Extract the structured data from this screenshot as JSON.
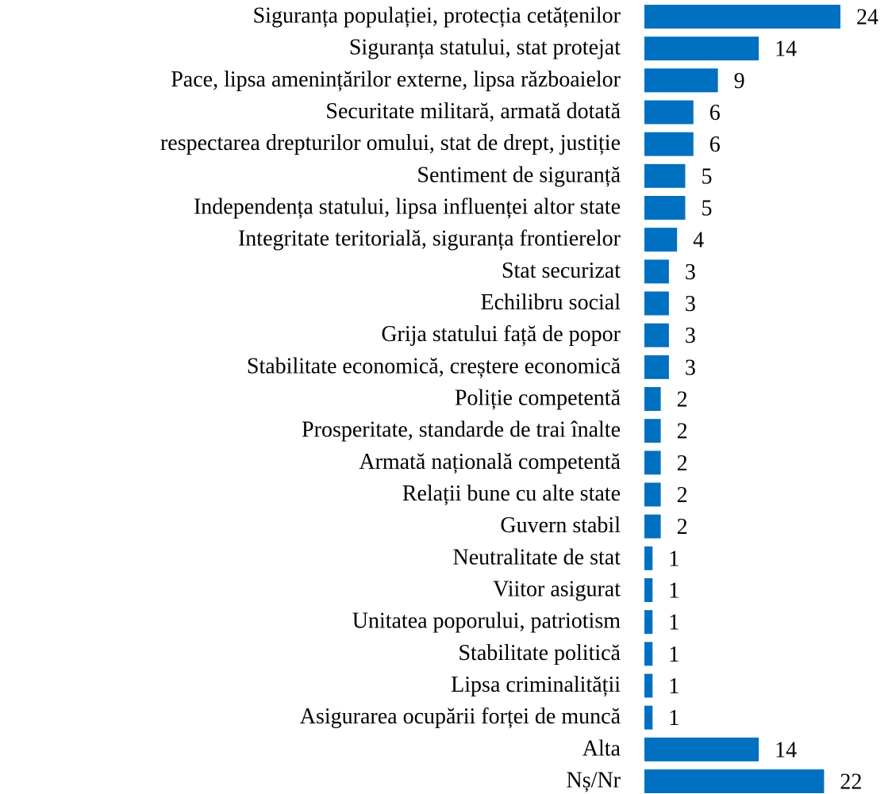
{
  "chart_data": {
    "type": "bar",
    "orientation": "horizontal",
    "color": "#0070c0",
    "categories": [
      "Siguranța populației, protecția cetățenilor",
      "Siguranța statului, stat protejat",
      "Pace, lipsa amenințărilor externe, lipsa războaielor",
      "Securitate militară, armată dotată",
      "respectarea drepturilor omului, stat de drept, justiție",
      "Sentiment de siguranță",
      "Independența statului, lipsa influenței altor state",
      "Integritate teritorială, siguranța frontierelor",
      "Stat securizat",
      "Echilibru social",
      "Grija statului față de popor",
      "Stabilitate economică, creștere economică",
      "Poliție competentă",
      "Prosperitate, standarde de trai înalte",
      "Armată națională competentă",
      "Relații bune cu alte state",
      "Guvern stabil",
      "Neutralitate de stat",
      "Viitor asigurat",
      "Unitatea poporului, patriotism",
      "Stabilitate politică",
      "Lipsa criminalității",
      "Asigurarea ocupării forței de muncă",
      "Alta",
      "Nș/Nr"
    ],
    "values": [
      24,
      14,
      9,
      6,
      6,
      5,
      5,
      4,
      3,
      3,
      3,
      3,
      2,
      2,
      2,
      2,
      2,
      1,
      1,
      1,
      1,
      1,
      1,
      14,
      22
    ]
  }
}
